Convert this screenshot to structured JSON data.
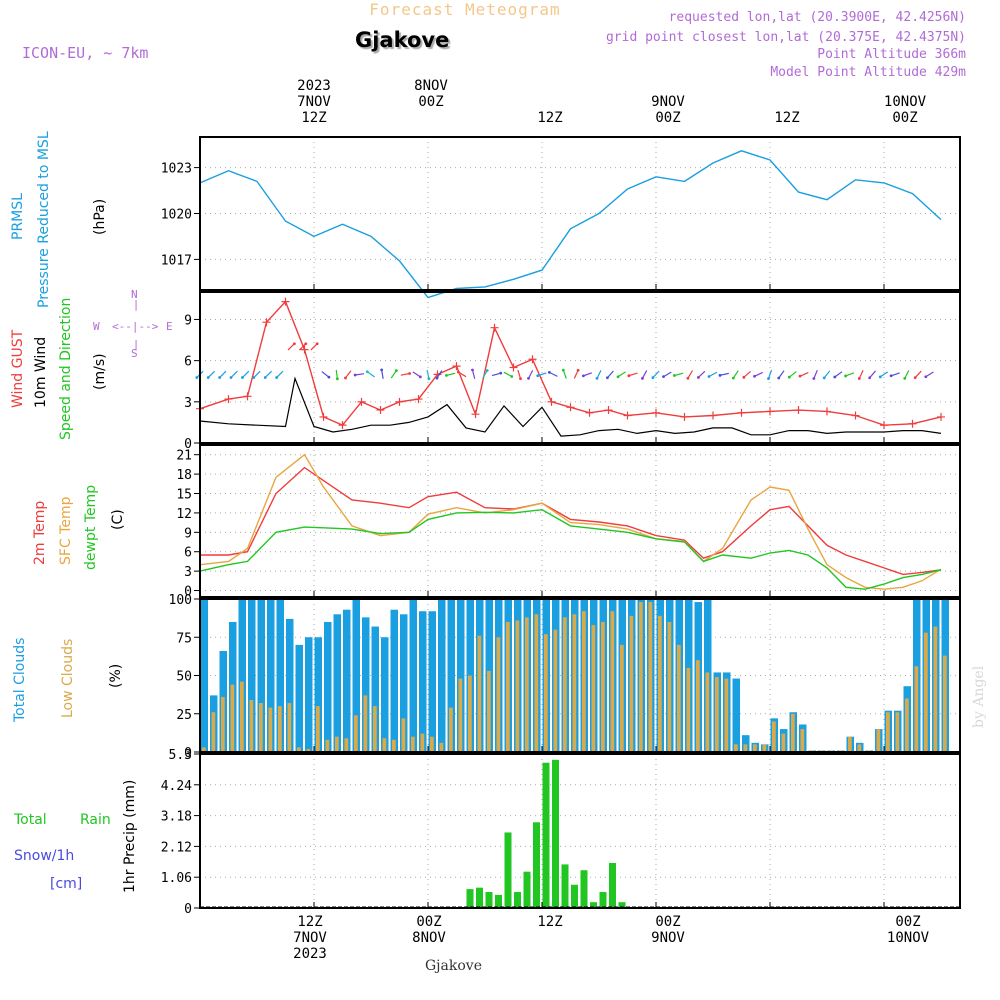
{
  "header": {
    "title": "Forecast Meteogram",
    "station": "Gjakove",
    "model": "ICON-EU, ~ 7km",
    "requested": "requested lon,lat (20.3900E, 42.4256N)",
    "grid_point": "grid point closest lon,lat (20.375E, 42.4375N)",
    "point_altitude": "Point Altitude 366m",
    "model_altitude": "Model Point Altitude 429m",
    "footer_station": "Gjakove",
    "credit": "by Angel"
  },
  "time_axis": {
    "top": [
      {
        "l1": "2023",
        "l2": "7NOV",
        "l3": "12Z"
      },
      {
        "l1": "",
        "l2": "8NOV",
        "l3": "00Z"
      },
      {
        "l1": "",
        "l2": "",
        "l3": "12Z"
      },
      {
        "l1": "",
        "l2": "9NOV",
        "l3": "00Z"
      },
      {
        "l1": "",
        "l2": "",
        "l3": "12Z"
      },
      {
        "l1": "",
        "l2": "10NOV",
        "l3": "00Z"
      }
    ],
    "bottom": [
      {
        "l1": "12Z",
        "l2": "7NOV",
        "l3": "2023"
      },
      {
        "l1": "00Z",
        "l2": "8NOV",
        "l3": ""
      },
      {
        "l1": "12Z",
        "l2": "",
        "l3": ""
      },
      {
        "l1": "00Z",
        "l2": "9NOV",
        "l3": ""
      },
      {
        "l1": "12Z",
        "l2": "",
        "l3": ""
      },
      {
        "l1": "00Z",
        "l2": "10NOV",
        "l3": ""
      }
    ]
  },
  "panels": {
    "pressure": {
      "label_a": "PRMSL",
      "label_b": "Pressure Reduced to MSL",
      "unit": "(hPa)",
      "ticks": [
        "1023",
        "1020",
        "1017"
      ]
    },
    "wind": {
      "label_a": "Wind GUST",
      "label_b": "10m Wind",
      "label_c": "Speed and Direction",
      "unit": "(m/s)",
      "ticks": [
        "9",
        "6",
        "3",
        "0"
      ],
      "compass_n": "N",
      "compass_s": "S",
      "compass_w": "W",
      "compass_e": "E",
      "compass_h": "<--|-->"
    },
    "temp": {
      "label_a": "2m Temp",
      "label_b": "SFC Temp",
      "label_c": "dewpt Temp",
      "unit": "(C)",
      "ticks": [
        "21",
        "18",
        "15",
        "12",
        "9",
        "6",
        "3",
        "0"
      ]
    },
    "clouds": {
      "label_a": "Total Clouds",
      "label_b": "Low Clouds",
      "unit": "(%)",
      "ticks": [
        "100",
        "75",
        "50",
        "25",
        "0"
      ]
    },
    "precip": {
      "label_a": "Total",
      "label_b": "Rain",
      "label_c": "Snow/1h",
      "label_d": "[cm]",
      "unit": "1hr Precip (mm)",
      "ticks": [
        "5.3",
        "4.24",
        "3.18",
        "2.12",
        "1.06",
        "0"
      ]
    }
  },
  "colors": {
    "pressure": "#1a9fe0",
    "gust": "#f03c3c",
    "wind": "#000000",
    "t2m": "#f03c3c",
    "sfc": "#e8a640",
    "dew": "#22c622",
    "total_cloud": "#1a9fe0",
    "low_cloud": "#d9a94a",
    "rain": "#22c622",
    "snow": "#4a4ae0",
    "purple": "#b26bd6"
  },
  "chart_data": [
    {
      "type": "line",
      "name": "PRMSL",
      "x_hours": [
        0,
        3,
        6,
        9,
        12,
        15,
        18,
        21,
        24,
        27,
        30,
        33,
        36,
        39,
        42,
        45,
        48,
        51,
        54,
        57,
        60,
        63,
        66,
        69,
        72,
        75,
        78
      ],
      "values": [
        1022.0,
        1022.8,
        1022.1,
        1019.5,
        1018.5,
        1019.3,
        1018.5,
        1016.9,
        1014.5,
        1015.1,
        1015.2,
        1015.7,
        1016.3,
        1019.0,
        1020.0,
        1021.6,
        1022.4,
        1022.1,
        1023.3,
        1024.1,
        1023.5,
        1021.4,
        1020.9,
        1022.2,
        1022.0,
        1021.3,
        1019.6
      ],
      "ylim": [
        1015,
        1025
      ],
      "ticks": [
        1017,
        1020,
        1023
      ]
    },
    {
      "type": "line",
      "name": "Wind GUST",
      "x_hours": [
        0,
        3,
        5,
        7,
        9,
        11,
        13,
        15,
        17,
        19,
        21,
        23,
        25,
        27,
        29,
        31,
        33,
        35,
        37,
        39,
        41,
        43,
        45,
        48,
        51,
        54,
        57,
        60,
        63,
        66,
        69,
        72,
        75,
        78
      ],
      "values": [
        2.5,
        3.2,
        3.4,
        8.8,
        10.3,
        6.8,
        1.9,
        1.3,
        3.0,
        2.4,
        3.0,
        3.2,
        5.0,
        5.6,
        2.1,
        8.4,
        5.5,
        6.1,
        3.0,
        2.6,
        2.2,
        2.4,
        2.0,
        2.2,
        1.9,
        2.0,
        2.2,
        2.3,
        2.4,
        2.3,
        2.0,
        1.3,
        1.4,
        1.9
      ],
      "ylim": [
        0,
        11
      ],
      "ticks": [
        0,
        3,
        6,
        9
      ]
    },
    {
      "type": "line",
      "name": "10m Wind",
      "x_hours": [
        0,
        3,
        6,
        9,
        10,
        12,
        14,
        16,
        18,
        20,
        22,
        24,
        26,
        28,
        30,
        32,
        34,
        36,
        38,
        40,
        42,
        44,
        46,
        48,
        50,
        52,
        54,
        56,
        58,
        60,
        62,
        64,
        66,
        68,
        70,
        72,
        74,
        76,
        78
      ],
      "values": [
        1.6,
        1.4,
        1.3,
        1.2,
        4.7,
        1.2,
        0.8,
        1.0,
        1.3,
        1.3,
        1.5,
        1.9,
        2.8,
        1.1,
        0.8,
        2.7,
        1.2,
        2.6,
        0.5,
        0.6,
        0.9,
        1.0,
        0.7,
        0.9,
        0.7,
        0.8,
        1.1,
        1.1,
        0.6,
        0.6,
        0.9,
        0.9,
        0.7,
        0.8,
        0.8,
        0.8,
        0.9,
        0.9,
        0.7
      ],
      "ylim": [
        0,
        11
      ]
    },
    {
      "type": "line",
      "name": "Temperature",
      "x_hours": [
        0,
        3,
        5,
        8,
        11,
        13,
        16,
        19,
        22,
        24,
        27,
        30,
        33,
        36,
        39,
        42,
        45,
        48,
        51,
        53,
        55,
        58,
        60,
        62,
        64,
        66,
        68,
        70,
        72,
        74,
        76,
        78
      ],
      "series": [
        {
          "name": "2m Temp",
          "values": [
            5.5,
            5.5,
            6.0,
            15.0,
            19.0,
            17.0,
            14.0,
            13.5,
            12.8,
            14.5,
            15.2,
            12.8,
            12.6,
            13.5,
            11.0,
            10.6,
            10.0,
            8.5,
            7.8,
            5.0,
            6.0,
            10.0,
            12.5,
            13.0,
            10.0,
            7.0,
            5.5,
            4.5,
            3.5,
            2.5,
            2.8,
            3.2
          ]
        },
        {
          "name": "SFC Temp",
          "values": [
            4.0,
            4.5,
            6.5,
            17.5,
            21.0,
            16.0,
            10.0,
            8.5,
            9.0,
            11.8,
            12.8,
            12.0,
            12.5,
            13.5,
            10.5,
            10.2,
            9.5,
            8.0,
            7.6,
            4.5,
            6.5,
            14.0,
            16.0,
            15.5,
            9.5,
            4.0,
            2.0,
            0.5,
            0.2,
            0.5,
            1.5,
            3.3
          ]
        },
        {
          "name": "dewpt Temp",
          "values": [
            3.0,
            4.0,
            4.5,
            9.0,
            9.8,
            9.7,
            9.5,
            8.8,
            9.0,
            11.0,
            12.0,
            12.1,
            12.0,
            12.5,
            10.0,
            9.5,
            9.0,
            8.0,
            7.5,
            4.5,
            5.5,
            5.0,
            5.8,
            6.2,
            5.5,
            3.5,
            0.5,
            0.2,
            1.0,
            2.0,
            2.5,
            3.2
          ]
        }
      ],
      "ylim": [
        -1,
        22.5
      ],
      "ticks": [
        0,
        3,
        6,
        9,
        12,
        15,
        18,
        21
      ]
    },
    {
      "type": "bar",
      "name": "Clouds",
      "x_hours": [
        0,
        1,
        2,
        3,
        4,
        5,
        6,
        7,
        8,
        9,
        10,
        11,
        12,
        13,
        14,
        15,
        16,
        17,
        18,
        19,
        20,
        21,
        22,
        23,
        24,
        25,
        26,
        27,
        28,
        29,
        30,
        31,
        32,
        33,
        34,
        35,
        36,
        37,
        38,
        39,
        40,
        41,
        42,
        43,
        44,
        45,
        46,
        47,
        48,
        49,
        50,
        51,
        52,
        53,
        54,
        55,
        56,
        57,
        58,
        59,
        60,
        61,
        62,
        63,
        64,
        65,
        66,
        67,
        68,
        69,
        70,
        71,
        72,
        73,
        74,
        75,
        76,
        77,
        78
      ],
      "series": [
        {
          "name": "Total Clouds",
          "values": [
            100,
            37,
            66,
            85,
            100,
            100,
            100,
            100,
            100,
            87,
            70,
            75,
            75,
            85,
            90,
            93,
            100,
            88,
            82,
            75,
            93,
            90,
            100,
            92,
            92,
            100,
            100,
            100,
            100,
            100,
            100,
            100,
            100,
            100,
            100,
            100,
            100,
            100,
            100,
            100,
            100,
            100,
            100,
            100,
            100,
            100,
            100,
            100,
            100,
            100,
            100,
            100,
            98,
            100,
            52,
            52,
            48,
            11,
            6,
            5,
            22,
            15,
            26,
            18,
            1,
            1,
            1,
            1,
            10,
            6,
            1,
            15,
            27,
            27,
            43,
            100,
            100,
            100,
            100
          ]
        },
        {
          "name": "Low Clouds",
          "values": [
            3,
            26,
            36,
            44,
            46,
            34,
            32,
            29,
            30,
            32,
            3,
            2,
            30,
            8,
            10,
            9,
            24,
            37,
            30,
            9,
            8,
            22,
            10,
            12,
            10,
            6,
            29,
            48,
            50,
            76,
            53,
            75,
            85,
            86,
            88,
            90,
            77,
            80,
            88,
            90,
            92,
            83,
            85,
            92,
            70,
            89,
            98,
            98,
            89,
            85,
            70,
            55,
            60,
            52,
            49,
            48,
            5,
            5,
            5,
            5,
            20,
            12,
            25,
            15,
            1,
            1,
            1,
            1,
            10,
            5,
            1,
            15,
            26,
            26,
            35,
            56,
            78,
            82,
            63
          ]
        }
      ],
      "ylim": [
        0,
        100
      ],
      "ticks": [
        0,
        25,
        50,
        75,
        100
      ]
    },
    {
      "type": "bar",
      "name": "Total Rain",
      "x_hours": [
        28,
        29,
        30,
        31,
        32,
        33,
        34,
        35,
        36,
        37,
        38,
        39,
        40,
        41,
        42,
        43,
        44
      ],
      "values": [
        0.65,
        0.7,
        0.55,
        0.45,
        2.6,
        0.55,
        1.25,
        2.95,
        5.0,
        5.1,
        1.5,
        0.8,
        1.3,
        0.2,
        0.55,
        1.55,
        0.2
      ],
      "ylim": [
        0,
        5.3
      ],
      "ticks": [
        0,
        1.06,
        2.12,
        3.18,
        4.24,
        5.3
      ]
    }
  ]
}
